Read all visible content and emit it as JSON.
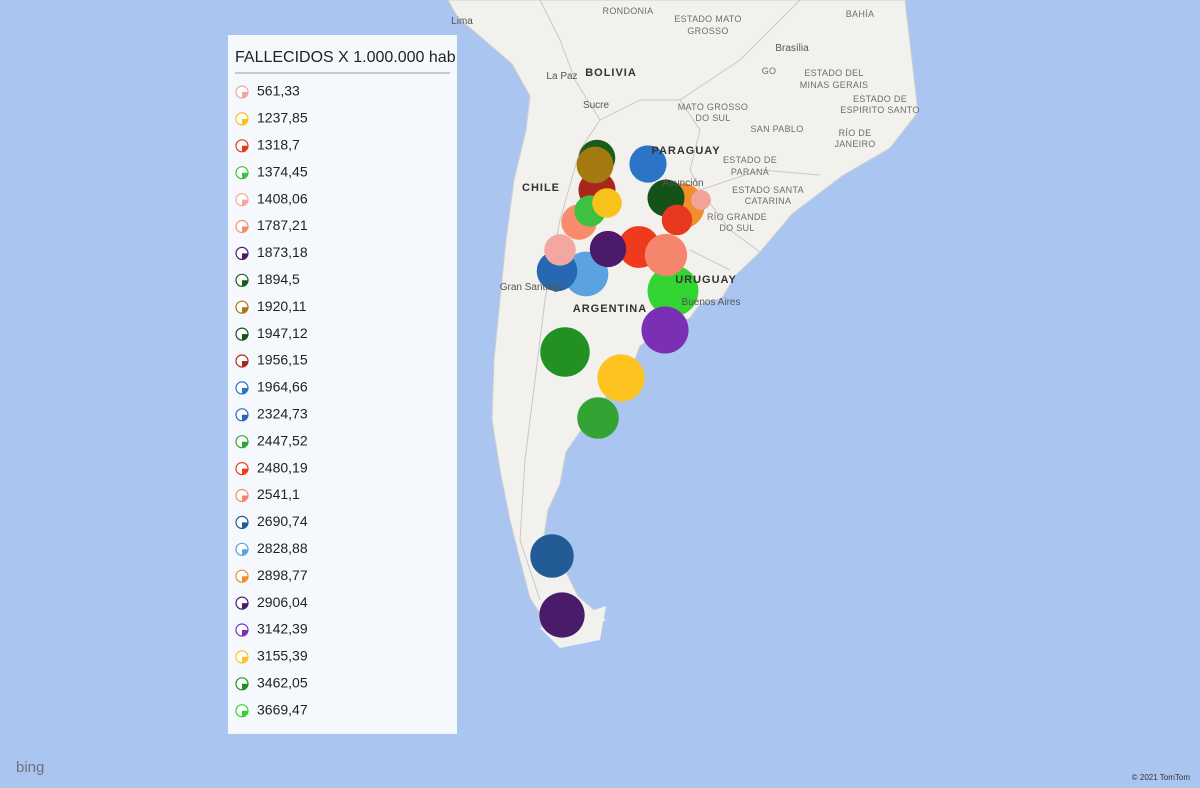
{
  "legend": {
    "title": "FALLECIDOS X 1.000.000 hab",
    "items": [
      {
        "value": 561.33,
        "label": "561,33",
        "color": "#f4a39a"
      },
      {
        "value": 1237.85,
        "label": "1237,85",
        "color": "#f9c21a"
      },
      {
        "value": 1318.7,
        "label": "1318,7",
        "color": "#e8391f"
      },
      {
        "value": 1374.45,
        "label": "1374,45",
        "color": "#3fc13f"
      },
      {
        "value": 1408.06,
        "label": "1408,06",
        "color": "#f2a7a0"
      },
      {
        "value": 1787.21,
        "label": "1787,21",
        "color": "#f78b6c"
      },
      {
        "value": 1873.18,
        "label": "1873,18",
        "color": "#4b1a6b"
      },
      {
        "value": 1894.5,
        "label": "1894,5",
        "color": "#1a5d1a"
      },
      {
        "value": 1920.11,
        "label": "1920,11",
        "color": "#a47a10"
      },
      {
        "value": 1947.12,
        "label": "1947,12",
        "color": "#15521a"
      },
      {
        "value": 1956.15,
        "label": "1956,15",
        "color": "#a8271a"
      },
      {
        "value": 1964.66,
        "label": "1964,66",
        "color": "#2b74c7"
      },
      {
        "value": 2324.73,
        "label": "2324,73",
        "color": "#2768b2"
      },
      {
        "value": 2447.52,
        "label": "2447,52",
        "color": "#33a333"
      },
      {
        "value": 2480.19,
        "label": "2480,19",
        "color": "#f03a1e"
      },
      {
        "value": 2541.1,
        "label": "2541,1",
        "color": "#f5866d"
      },
      {
        "value": 2690.74,
        "label": "2690,74",
        "color": "#225b96"
      },
      {
        "value": 2828.88,
        "label": "2828,88",
        "color": "#5ba2e0"
      },
      {
        "value": 2898.77,
        "label": "2898,77",
        "color": "#f28e2b"
      },
      {
        "value": 2906.04,
        "label": "2906,04",
        "color": "#4a1a6b"
      },
      {
        "value": 3142.39,
        "label": "3142,39",
        "color": "#7b2fb5"
      },
      {
        "value": 3155.39,
        "label": "3155,39",
        "color": "#fdc31f"
      },
      {
        "value": 3462.05,
        "label": "3462,05",
        "color": "#229022"
      },
      {
        "value": 3669.47,
        "label": "3669,47",
        "color": "#31d431"
      }
    ]
  },
  "map_labels": [
    "Lima",
    "RONDONIA",
    "ESTADO MATO",
    "GROSSO",
    "BAHÍA",
    "BOLIVIA",
    "La Paz",
    "Sucre",
    "Brasília",
    "GO",
    "ESTADO DEL",
    "MINAS GERAIS",
    "ESTADO DE",
    "ESPIRITO SANTO",
    "MATO GROSSO",
    "DO SUL",
    "SAN PABLO",
    "RÍO DE",
    "JANEIRO",
    "PARAGUAY",
    "Asunción",
    "ESTADO DE",
    "PARANÁ",
    "ESTADO SANTA",
    "CATARINA",
    "RÍO GRANDE",
    "DO SUL",
    "CHILE",
    "URUGUAY",
    "Buenos Aires",
    "Gran Santiago",
    "ARGENTINA"
  ],
  "attribution": {
    "logo": "bing",
    "copyright": "© 2021 TomTom"
  }
}
